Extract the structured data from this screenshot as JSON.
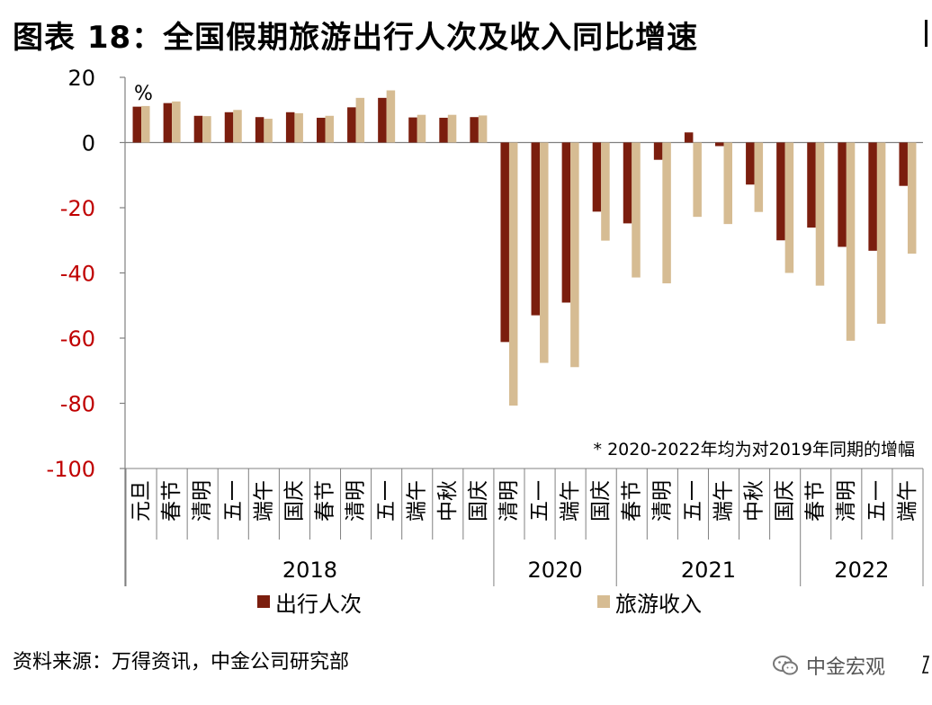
{
  "title": "图表 18：全国假期旅游出行人次及收入同比增速",
  "source": "资料来源：万得资讯，中金公司研究部",
  "watermark": "中金宏观",
  "chart_data": {
    "type": "bar",
    "unit_label": "%",
    "note": "* 2020-2022年均为对2019年同期的增幅",
    "ylim": [
      -100,
      20
    ],
    "yticks": [
      20,
      0,
      -20,
      -40,
      -60,
      -80,
      -100
    ],
    "grid": false,
    "legend_position": "bottom",
    "colors": {
      "series_1": "#7B1E0E",
      "series_2": "#D6BC93",
      "negative_tick": "#C00000",
      "positive_tick": "#000000",
      "axis": "#808080"
    },
    "categories": [
      "元旦",
      "春节",
      "清明",
      "五一",
      "端午",
      "国庆",
      "春节",
      "清明",
      "五一",
      "端午",
      "中秋",
      "国庆",
      "清明",
      "五一",
      "端午",
      "国庆",
      "春节",
      "清明",
      "五一",
      "端午",
      "中秋",
      "国庆",
      "春节",
      "清明",
      "五一",
      "端午"
    ],
    "groups": [
      {
        "label": "2018",
        "start": 0,
        "end": 11
      },
      {
        "label": "2020",
        "start": 12,
        "end": 15
      },
      {
        "label": "2021",
        "start": 16,
        "end": 21
      },
      {
        "label": "2022",
        "start": 22,
        "end": 25
      }
    ],
    "series": [
      {
        "name": "出行人次",
        "values": [
          11,
          12.1,
          8.2,
          9.3,
          7.8,
          9.3,
          7.6,
          10.8,
          13.7,
          7.7,
          7.6,
          7.8,
          -61.2,
          -53,
          -49.1,
          -21.2,
          -24.8,
          -5.3,
          3.1,
          -1.1,
          -12.9,
          -30,
          -26.1,
          -32,
          -33.2,
          -13.3
        ]
      },
      {
        "name": "旅游收入",
        "values": [
          11.2,
          12.6,
          8.1,
          10,
          7.3,
          9,
          8.2,
          13.7,
          16,
          8.5,
          8.5,
          8.3,
          -80.7,
          -67.6,
          -68.9,
          -30.1,
          -41.4,
          -43.2,
          -22.8,
          -25,
          -21.3,
          -40,
          -43.9,
          -60.8,
          -55.6,
          -34.1
        ]
      }
    ]
  }
}
